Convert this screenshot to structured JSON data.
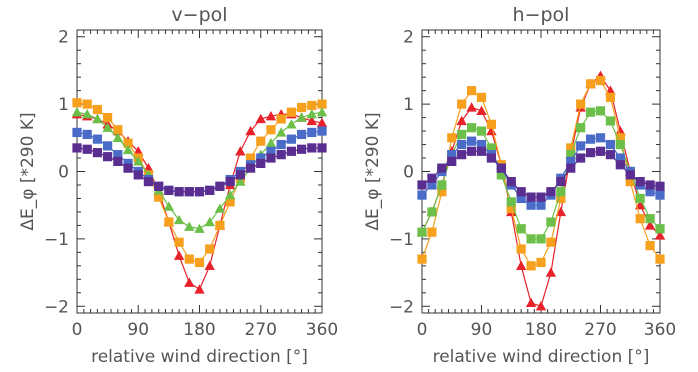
{
  "colors": {
    "red": "#e8222a",
    "orange": "#f7a01e",
    "green": "#6cc04a",
    "blue": "#4a6cc8",
    "purple": "#5a2d91"
  },
  "chart_data": [
    {
      "type": "line",
      "title": "v−pol",
      "xlabel": "relative wind direction [°]",
      "ylabel": "ΔE_φ [*290 K]",
      "xlim": [
        0,
        360
      ],
      "ylim": [
        -2.1,
        2.1
      ],
      "xticks": [
        "0",
        "90",
        "180",
        "270",
        "360"
      ],
      "yticks": [
        "2",
        "1",
        "0",
        "−1",
        "−2"
      ],
      "x": [
        0,
        15,
        30,
        45,
        60,
        75,
        90,
        105,
        120,
        135,
        150,
        165,
        180,
        195,
        210,
        225,
        240,
        255,
        270,
        285,
        300,
        315,
        330,
        345,
        360
      ],
      "series": [
        {
          "color": "red",
          "marker": "triangle",
          "values": [
            0.85,
            0.82,
            0.78,
            0.7,
            0.6,
            0.45,
            0.3,
            0.05,
            -0.3,
            -0.75,
            -1.25,
            -1.65,
            -1.75,
            -1.4,
            -0.8,
            -0.2,
            0.3,
            0.6,
            0.78,
            0.82,
            0.85,
            0.85,
            0.8,
            0.75,
            0.72
          ]
        },
        {
          "color": "orange",
          "marker": "square",
          "values": [
            1.02,
            1.0,
            0.92,
            0.8,
            0.62,
            0.42,
            0.2,
            -0.05,
            -0.38,
            -0.75,
            -1.05,
            -1.3,
            -1.35,
            -1.15,
            -0.8,
            -0.45,
            -0.1,
            0.2,
            0.45,
            0.62,
            0.78,
            0.88,
            0.95,
            0.98,
            1.0
          ]
        },
        {
          "color": "green",
          "marker": "triangle",
          "values": [
            0.88,
            0.85,
            0.78,
            0.65,
            0.5,
            0.32,
            0.15,
            -0.05,
            -0.28,
            -0.52,
            -0.72,
            -0.82,
            -0.85,
            -0.75,
            -0.55,
            -0.35,
            -0.15,
            0.05,
            0.25,
            0.42,
            0.58,
            0.7,
            0.8,
            0.85,
            0.88
          ]
        },
        {
          "color": "blue",
          "marker": "square",
          "values": [
            0.58,
            0.55,
            0.48,
            0.38,
            0.25,
            0.12,
            0.0,
            -0.12,
            -0.22,
            -0.28,
            -0.3,
            -0.3,
            -0.3,
            -0.28,
            -0.22,
            -0.12,
            0.0,
            0.1,
            0.2,
            0.3,
            0.4,
            0.48,
            0.55,
            0.58,
            0.6
          ]
        },
        {
          "color": "purple",
          "marker": "square",
          "values": [
            0.35,
            0.33,
            0.28,
            0.22,
            0.15,
            0.05,
            -0.05,
            -0.15,
            -0.22,
            -0.28,
            -0.3,
            -0.3,
            -0.3,
            -0.28,
            -0.22,
            -0.15,
            -0.05,
            0.05,
            0.12,
            0.2,
            0.25,
            0.3,
            0.33,
            0.35,
            0.35
          ]
        }
      ]
    },
    {
      "type": "line",
      "title": "h−pol",
      "xlabel": "relative wind direction [°]",
      "ylabel": "ΔE_φ [*290 K]",
      "xlim": [
        0,
        360
      ],
      "ylim": [
        -2.1,
        2.1
      ],
      "xticks": [
        "0",
        "90",
        "180",
        "270",
        "360"
      ],
      "yticks": [
        "2",
        "1",
        "0",
        "−1",
        "−2"
      ],
      "x": [
        0,
        15,
        30,
        45,
        60,
        75,
        90,
        105,
        120,
        135,
        150,
        165,
        180,
        195,
        210,
        225,
        240,
        255,
        270,
        285,
        300,
        315,
        330,
        345,
        360
      ],
      "series": [
        {
          "color": "red",
          "marker": "triangle",
          "values": [
            -0.9,
            -0.6,
            -0.2,
            0.3,
            0.75,
            0.95,
            0.9,
            0.6,
            0.1,
            -0.6,
            -1.4,
            -1.95,
            -2.0,
            -1.5,
            -0.6,
            0.25,
            0.95,
            1.3,
            1.42,
            1.2,
            0.6,
            0.0,
            -0.5,
            -0.8,
            -0.95
          ]
        },
        {
          "color": "orange",
          "marker": "square",
          "values": [
            -1.3,
            -0.9,
            -0.3,
            0.5,
            1.0,
            1.2,
            1.1,
            0.7,
            0.1,
            -0.55,
            -1.15,
            -1.4,
            -1.35,
            -1.05,
            -0.4,
            0.35,
            1.0,
            1.3,
            1.35,
            1.1,
            0.5,
            -0.15,
            -0.7,
            -1.1,
            -1.3
          ]
        },
        {
          "color": "green",
          "marker": "square",
          "values": [
            -0.9,
            -0.6,
            -0.2,
            0.25,
            0.55,
            0.65,
            0.6,
            0.35,
            -0.05,
            -0.45,
            -0.85,
            -1.0,
            -1.0,
            -0.75,
            -0.3,
            0.25,
            0.65,
            0.88,
            0.9,
            0.75,
            0.4,
            0.0,
            -0.4,
            -0.7,
            -0.85
          ]
        },
        {
          "color": "blue",
          "marker": "square",
          "values": [
            -0.35,
            -0.2,
            0.0,
            0.25,
            0.4,
            0.45,
            0.4,
            0.25,
            0.05,
            -0.2,
            -0.4,
            -0.5,
            -0.5,
            -0.35,
            -0.1,
            0.15,
            0.38,
            0.48,
            0.5,
            0.4,
            0.2,
            0.0,
            -0.2,
            -0.3,
            -0.35
          ]
        },
        {
          "color": "purple",
          "marker": "square",
          "values": [
            -0.2,
            -0.1,
            0.05,
            0.15,
            0.25,
            0.3,
            0.3,
            0.2,
            0.05,
            -0.15,
            -0.3,
            -0.38,
            -0.38,
            -0.3,
            -0.15,
            0.05,
            0.2,
            0.28,
            0.3,
            0.25,
            0.1,
            -0.05,
            -0.15,
            -0.2,
            -0.22
          ]
        }
      ]
    }
  ]
}
